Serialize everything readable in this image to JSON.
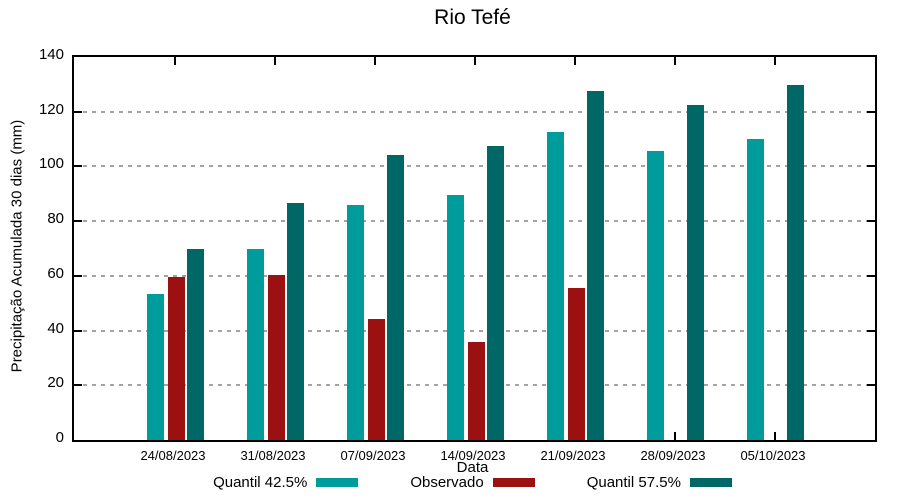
{
  "title": "Rio Tefé",
  "chart_data": {
    "type": "bar",
    "title": "Rio Tefé",
    "xlabel": "Data",
    "ylabel": "Precipitação Acumulada 30 dias (mm)",
    "ylim": [
      0,
      140
    ],
    "ytick_step": 20,
    "yticks": [
      0,
      20,
      40,
      60,
      80,
      100,
      120,
      140
    ],
    "grid": "dashed horizontal gridlines",
    "legend_position": "bottom",
    "categories": [
      "24/08/2023",
      "31/08/2023",
      "07/09/2023",
      "14/09/2023",
      "21/09/2023",
      "28/09/2023",
      "05/10/2023"
    ],
    "series": [
      {
        "name": "Quantil 42.5%",
        "color": "#009b9b",
        "values": [
          53.2,
          70.0,
          85.9,
          89.5,
          112.7,
          105.6,
          110.2
        ]
      },
      {
        "name": "Observado",
        "color": "#9b1010",
        "values": [
          59.6,
          60.4,
          44.3,
          36.0,
          55.6,
          null,
          null
        ]
      },
      {
        "name": "Quantil 57.5%",
        "color": "#006767",
        "values": [
          69.7,
          86.8,
          104.2,
          107.5,
          127.7,
          122.4,
          129.9
        ]
      }
    ]
  },
  "colors": {
    "axis": "#000000",
    "gridline": "#a3a3a3",
    "background": "#ffffff"
  }
}
